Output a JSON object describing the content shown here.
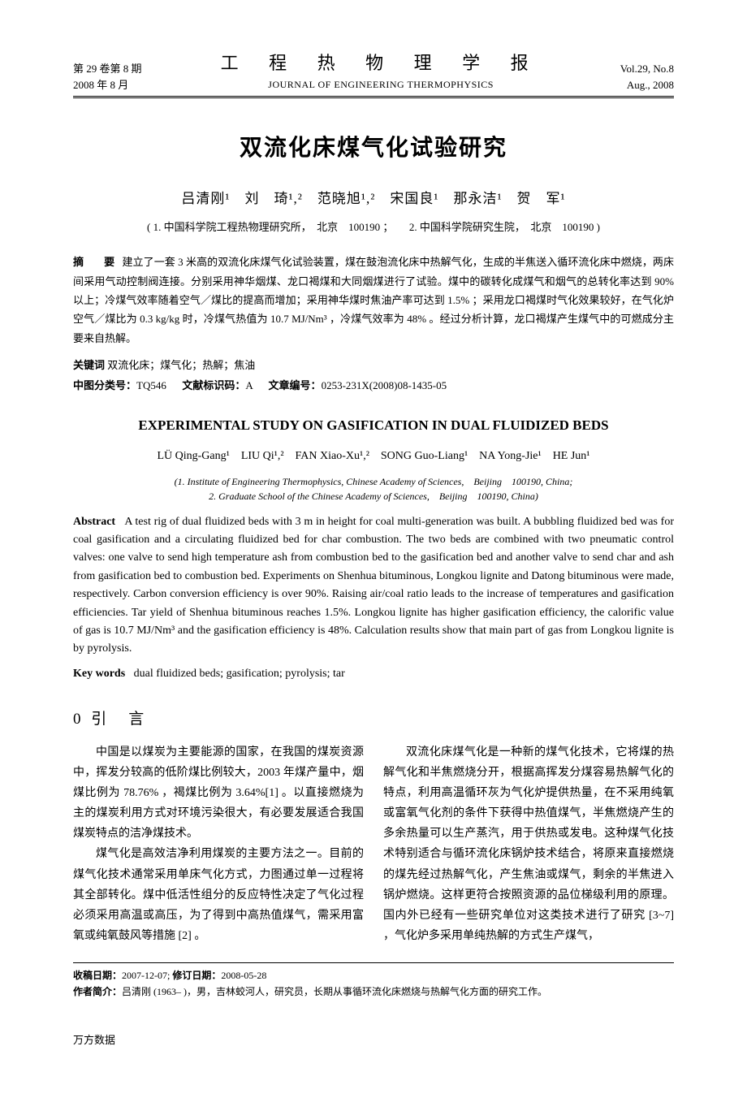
{
  "header": {
    "left_line1": "第 29 卷第 8 期",
    "left_line2": "2008 年 8 月",
    "journal_cn": "工 程 热 物 理 学 报",
    "journal_en": "JOURNAL OF ENGINEERING THERMOPHYSICS",
    "right_line1": "Vol.29, No.8",
    "right_line2": "Aug., 2008"
  },
  "title_cn": "双流化床煤气化试验研究",
  "authors_cn": "吕清刚¹　刘　琦¹,²　范晓旭¹,²　宋国良¹　那永洁¹　贺　军¹",
  "affiliations_cn": "( 1. 中国科学院工程热物理研究所，　北京　100190 ；　　2. 中国科学院研究生院，　北京　100190 )",
  "abstract_cn_label": "摘　要",
  "abstract_cn": "建立了一套 3 米高的双流化床煤气化试验装置，煤在鼓泡流化床中热解气化，生成的半焦送入循环流化床中燃烧，两床间采用气动控制阀连接。分别采用神华烟煤、龙口褐煤和大同烟煤进行了试验。煤中的碳转化成煤气和烟气的总转化率达到 90% 以上；冷煤气效率随着空气／煤比的提高而增加；采用神华煤时焦油产率可达到 1.5% ；采用龙口褐煤时气化效果较好，在气化炉空气／煤比为 0.3 kg/kg 时，冷煤气热值为 10.7 MJ/Nm³ ，冷煤气效率为 48% 。经过分析计算，龙口褐煤产生煤气中的可燃成分主要来自热解。",
  "keywords_cn_label": "关键词",
  "keywords_cn": "双流化床；煤气化；热解；焦油",
  "clc_label": "中图分类号：",
  "clc": "TQ546",
  "doc_code_label": "文献标识码：",
  "doc_code": "A",
  "article_id_label": "文章编号：",
  "article_id": "0253-231X(2008)08-1435-05",
  "title_en": "EXPERIMENTAL STUDY ON GASIFICATION IN DUAL FLUIDIZED BEDS",
  "authors_en": "LÜ Qing-Gang¹　LIU Qi¹,²　FAN Xiao-Xu¹,²　SONG Guo-Liang¹　NA Yong-Jie¹　HE Jun¹",
  "affiliations_en_1": "(1. Institute of Engineering Thermophysics, Chinese Academy of Sciences,　Beijing　100190, China;",
  "affiliations_en_2": "2. Graduate School of the Chinese Academy of Sciences,　Beijing　100190, China)",
  "abstract_en_label": "Abstract",
  "abstract_en": "A test rig of dual fluidized beds with 3 m in height for coal multi-generation was built. A bubbling fluidized bed was for coal gasification and a circulating fluidized bed for char combustion. The two beds are combined with two pneumatic control valves: one valve to send high temperature ash from combustion bed to the gasification bed and another valve to send char and ash from gasification bed to combustion bed. Experiments on Shenhua bituminous, Longkou lignite and Datong bituminous were made, respectively. Carbon conversion efficiency is over 90%. Raising air/coal ratio leads to the increase of temperatures and gasification efficiencies. Tar yield of Shenhua bituminous reaches 1.5%. Longkou lignite has higher gasification efficiency, the calorific value of gas is 10.7 MJ/Nm³ and the gasification efficiency is 48%. Calculation results show that main part of gas from Longkou lignite is by pyrolysis.",
  "keywords_en_label": "Key words",
  "keywords_en": "dual fluidized beds; gasification; pyrolysis; tar",
  "section0_title": "0 引　言",
  "body_p1": "中国是以煤炭为主要能源的国家，在我国的煤炭资源中，挥发分较高的低阶煤比例较大，2003 年煤产量中，烟煤比例为 78.76% ，褐煤比例为 3.64%[1] 。以直接燃烧为主的煤炭利用方式对环境污染很大，有必要发展适合我国煤炭特点的洁净煤技术。",
  "body_p2": "煤气化是高效洁净利用煤炭的主要方法之一。目前的煤气化技术通常采用单床气化方式，力图通过单一过程将其全部转化。煤中低活性组分的反应特性决定了气化过程必须采用高温或高压，为了得到中高热值煤气，需采用富氧或纯氧鼓风等措施 [2] 。",
  "body_p3": "双流化床煤气化是一种新的煤气化技术，它将煤的热解气化和半焦燃烧分开，根据高挥发分煤容易热解气化的特点，利用高温循环灰为气化炉提供热量，在不采用纯氧或富氧气化剂的条件下获得中热值煤气，半焦燃烧产生的多余热量可以生产蒸汽，用于供热或发电。这种煤气化技术特别适合与循环流化床锅炉技术结合，将原来直接燃烧的煤先经过热解气化，产生焦油或煤气，剩余的半焦进入锅炉燃烧。这样更符合按照资源的品位梯级利用的原理。国内外已经有一些研究单位对这类技术进行了研究 [3~7] ，气化炉多采用单纯热解的方式生产煤气，",
  "footer": {
    "received_label": "收稿日期：",
    "received": "2007-12-07; ",
    "revised_label": "修订日期：",
    "revised": "2008-05-28",
    "author_label": "作者简介：",
    "author_bio": "吕清刚 (1963– )，男，吉林蛟河人，研究员，长期从事循环流化床燃烧与热解气化方面的研究工作。"
  },
  "wanfang": "万方数据"
}
